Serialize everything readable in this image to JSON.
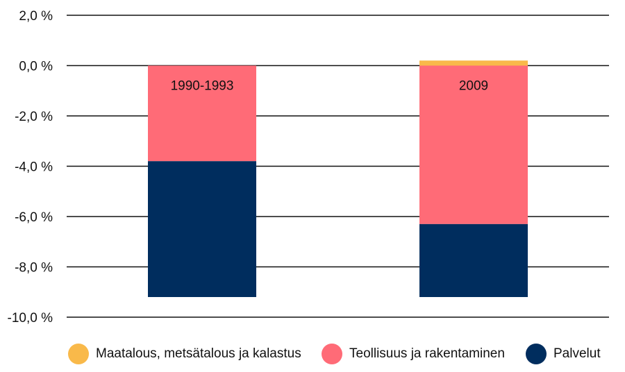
{
  "chart_data": {
    "type": "bar",
    "stacked": true,
    "categories": [
      "1990-1993",
      "2009"
    ],
    "series": [
      {
        "name": "Maatalous, metsätalous ja kalastus",
        "color": "#f9b94a",
        "values": [
          0.0,
          0.2
        ]
      },
      {
        "name": "Teollisuus ja rakentaminen",
        "color": "#ff6b77",
        "values": [
          -3.8,
          -6.3
        ]
      },
      {
        "name": "Palvelut",
        "color": "#002d5e",
        "values": [
          -5.4,
          -2.9
        ]
      }
    ],
    "ylim": [
      -10,
      2
    ],
    "yticks": [
      "2,0 %",
      "0,0 %",
      "-2,0 %",
      "-4,0 %",
      "-6,0 %",
      "-8,0 %",
      "-10,0 %"
    ],
    "ytick_values": [
      2,
      0,
      -2,
      -4,
      -6,
      -8,
      -10
    ],
    "grid": true,
    "legend_position": "bottom",
    "title": "",
    "xlabel": "",
    "ylabel": ""
  }
}
